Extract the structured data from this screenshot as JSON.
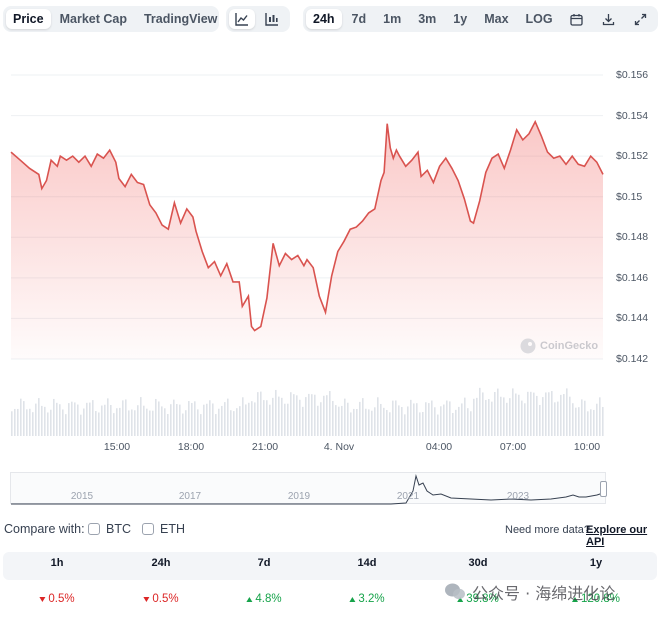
{
  "tabs": {
    "price": "Price",
    "market_cap": "Market Cap",
    "tradingview": "TradingView"
  },
  "ranges": [
    "24h",
    "7d",
    "1m",
    "3m",
    "1y",
    "Max",
    "LOG"
  ],
  "watermark": "CoinGecko",
  "colors": {
    "line": "#d9534f",
    "up": "#16a34a",
    "down": "#dc2626"
  },
  "chart_data": {
    "type": "line",
    "y_ticks": [
      "$0.156",
      "$0.154",
      "$0.152",
      "$0.15",
      "$0.148",
      "$0.146",
      "$0.144",
      "$0.142"
    ],
    "ylim": [
      0.142,
      0.156
    ],
    "x_ticks": [
      "15:00",
      "18:00",
      "21:00",
      "4. Nov",
      "04:00",
      "07:00",
      "10:00"
    ],
    "price_series": [
      [
        0,
        0.1522
      ],
      [
        3,
        0.1518
      ],
      [
        6,
        0.1514
      ],
      [
        9,
        0.1511
      ],
      [
        10,
        0.1504
      ],
      [
        11.5,
        0.1508
      ],
      [
        13,
        0.1518
      ],
      [
        15,
        0.1515
      ],
      [
        16,
        0.152
      ],
      [
        18,
        0.1518
      ],
      [
        20,
        0.152
      ],
      [
        22,
        0.1517
      ],
      [
        24,
        0.152
      ],
      [
        26,
        0.1515
      ],
      [
        28,
        0.1521
      ],
      [
        30,
        0.1519
      ],
      [
        32,
        0.1523
      ],
      [
        34,
        0.1517
      ],
      [
        35,
        0.1509
      ],
      [
        37,
        0.1505
      ],
      [
        39,
        0.1511
      ],
      [
        41,
        0.1507
      ],
      [
        43,
        0.1506
      ],
      [
        45,
        0.1496
      ],
      [
        47,
        0.1492
      ],
      [
        49,
        0.1486
      ],
      [
        51,
        0.1484
      ],
      [
        53,
        0.1497
      ],
      [
        55,
        0.1487
      ],
      [
        57,
        0.1494
      ],
      [
        59,
        0.149
      ],
      [
        60,
        0.1483
      ],
      [
        62,
        0.1473
      ],
      [
        64,
        0.1465
      ],
      [
        66,
        0.1468
      ],
      [
        68,
        0.1461
      ],
      [
        70,
        0.1467
      ],
      [
        72,
        0.1458
      ],
      [
        74,
        0.1458
      ],
      [
        75,
        0.1446
      ],
      [
        77,
        0.1451
      ],
      [
        78,
        0.1436
      ],
      [
        79,
        0.1434
      ],
      [
        81,
        0.1436
      ],
      [
        83,
        0.145
      ],
      [
        85,
        0.1477
      ],
      [
        87,
        0.1466
      ],
      [
        89,
        0.1472
      ],
      [
        91,
        0.1469
      ],
      [
        93,
        0.1471
      ],
      [
        95,
        0.1466
      ],
      [
        96,
        0.1469
      ],
      [
        98,
        0.1465
      ],
      [
        100,
        0.1451
      ],
      [
        102,
        0.1443
      ],
      [
        104,
        0.1461
      ],
      [
        106,
        0.1473
      ],
      [
        108,
        0.1478
      ],
      [
        110,
        0.1484
      ],
      [
        112,
        0.1485
      ],
      [
        114,
        0.1488
      ],
      [
        116,
        0.1492
      ],
      [
        118,
        0.1494
      ],
      [
        120,
        0.1508
      ],
      [
        121,
        0.1512
      ],
      [
        122,
        0.1536
      ],
      [
        123,
        0.1524
      ],
      [
        124,
        0.1519
      ],
      [
        125,
        0.1523
      ],
      [
        126,
        0.152
      ],
      [
        128,
        0.1515
      ],
      [
        130,
        0.1518
      ],
      [
        132,
        0.1522
      ],
      [
        133,
        0.151
      ],
      [
        135,
        0.1513
      ],
      [
        137,
        0.1507
      ],
      [
        139,
        0.1515
      ],
      [
        141,
        0.1519
      ],
      [
        143,
        0.1514
      ],
      [
        145,
        0.1508
      ],
      [
        147,
        0.1499
      ],
      [
        149,
        0.1488
      ],
      [
        150,
        0.1487
      ],
      [
        152,
        0.1498
      ],
      [
        154,
        0.1512
      ],
      [
        156,
        0.1519
      ],
      [
        158,
        0.1521
      ],
      [
        160,
        0.1514
      ],
      [
        162,
        0.1523
      ],
      [
        164,
        0.1533
      ],
      [
        166,
        0.1528
      ],
      [
        168,
        0.1531
      ],
      [
        170,
        0.1537
      ],
      [
        172,
        0.153
      ],
      [
        174,
        0.1522
      ],
      [
        176,
        0.1519
      ],
      [
        178,
        0.152
      ],
      [
        180,
        0.1516
      ],
      [
        182,
        0.152
      ],
      [
        184,
        0.1516
      ],
      [
        186,
        0.1515
      ],
      [
        188,
        0.152
      ],
      [
        190,
        0.1517
      ],
      [
        192,
        0.1511
      ]
    ],
    "history_labels": [
      "2015",
      "2017",
      "2019",
      "2021",
      "2023"
    ]
  },
  "compare": {
    "label": "Compare with:",
    "btc": "BTC",
    "eth": "ETH",
    "need_more": "Need more data?",
    "explore": "Explore our API"
  },
  "changes": [
    {
      "period": "1h",
      "value": "0.5%",
      "dir": "down"
    },
    {
      "period": "24h",
      "value": "0.5%",
      "dir": "down"
    },
    {
      "period": "7d",
      "value": "4.8%",
      "dir": "up"
    },
    {
      "period": "14d",
      "value": "3.2%",
      "dir": "up"
    },
    {
      "period": "30d",
      "value": "39.8%",
      "dir": "up"
    },
    {
      "period": "1y",
      "value": "120.8%",
      "dir": "up"
    }
  ],
  "overlay": {
    "text": "公众号 · 海绵进化论"
  }
}
